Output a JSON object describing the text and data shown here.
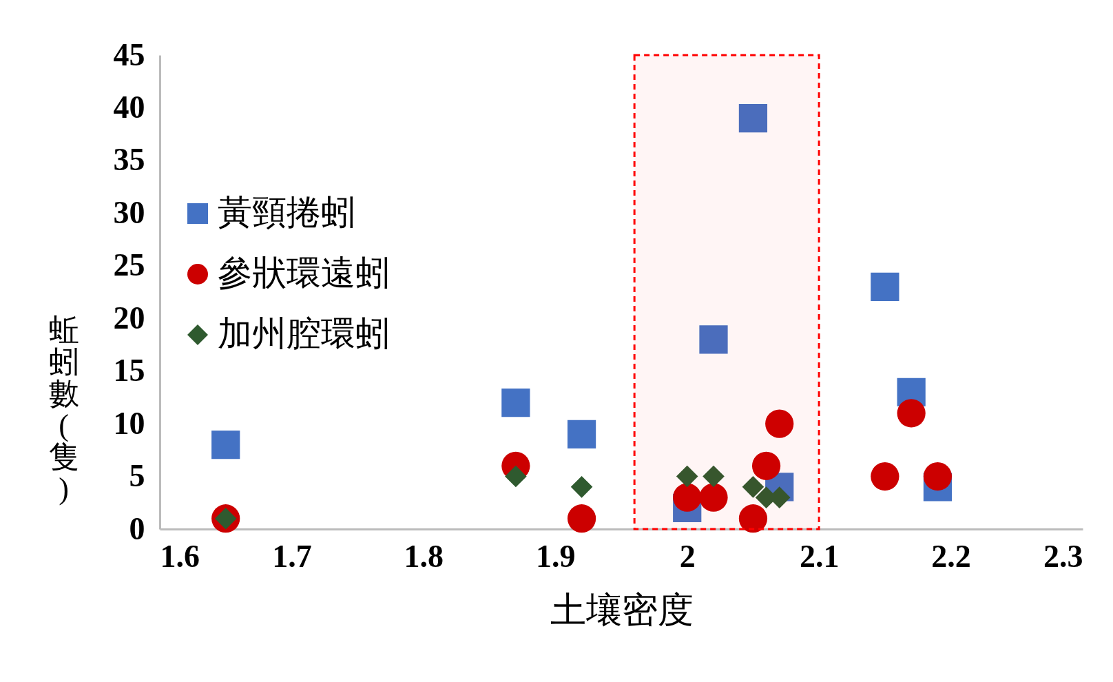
{
  "chart_data": {
    "type": "scatter",
    "xlabel": "土壤密度",
    "ylabel": "蚯蚓數(隻)",
    "xlim": [
      1.6,
      2.3
    ],
    "xticks": [
      {
        "value": 1.6,
        "label": "1.6"
      },
      {
        "value": 1.7,
        "label": "1.7"
      },
      {
        "value": 1.8,
        "label": "1.8"
      },
      {
        "value": 1.9,
        "label": "1.9"
      },
      {
        "value": 2,
        "label": "2"
      },
      {
        "value": 2.1,
        "label": "2.1"
      },
      {
        "value": 2.2,
        "label": "2.2"
      },
      {
        "value": 2.3,
        "label": "2.3"
      }
    ],
    "ylim": [
      0,
      45
    ],
    "yticks": [
      0,
      5,
      10,
      15,
      20,
      25,
      30,
      35,
      40,
      45
    ],
    "grid": false,
    "legend": "left",
    "bands": [
      {
        "axis": "x",
        "from": 1.96,
        "to": 2.1,
        "color": "#ff0000"
      }
    ],
    "series": [
      {
        "name": "黃頸捲蚓",
        "color": "#4472c4",
        "marker": "square",
        "x": [
          1.65,
          1.87,
          1.92,
          2.0,
          2.05,
          2.02,
          2.07,
          2.15,
          2.17,
          2.19
        ],
        "values": [
          8,
          12,
          9,
          2,
          39,
          18,
          4,
          23,
          13,
          4
        ]
      },
      {
        "name": "參狀環遠蚓",
        "color": "#cc0000",
        "marker": "circle",
        "x": [
          1.65,
          1.87,
          1.92,
          2.0,
          2.02,
          2.05,
          2.06,
          2.07,
          2.15,
          2.17,
          2.19
        ],
        "values": [
          1,
          6,
          1,
          3,
          3,
          1,
          6,
          10,
          5,
          11,
          5
        ]
      },
      {
        "name": "加州腔環蚓",
        "color": "#2f5a2f",
        "marker": "diamond",
        "x": [
          1.65,
          1.87,
          1.92,
          2.0,
          2.02,
          2.05,
          2.06,
          2.07
        ],
        "values": [
          1,
          5,
          4,
          5,
          5,
          4,
          3,
          3
        ]
      }
    ]
  }
}
